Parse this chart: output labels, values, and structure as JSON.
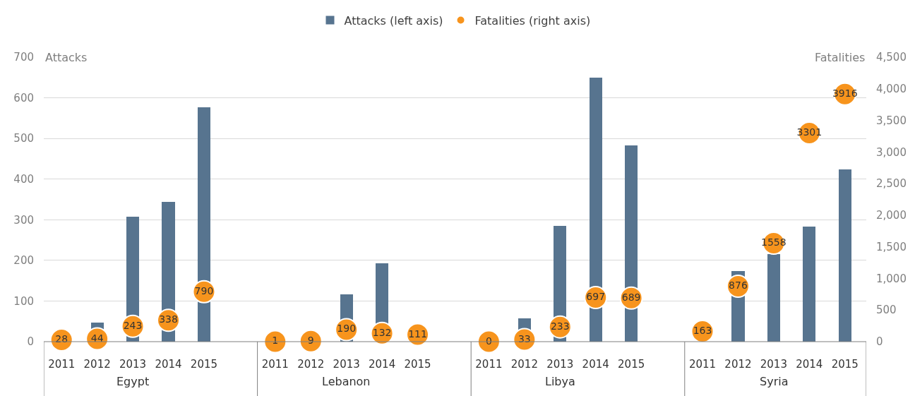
{
  "chart_data": {
    "type": "bar",
    "categories": [
      "2011",
      "2012",
      "2013",
      "2014",
      "2015",
      null,
      "2011",
      "2012",
      "2013",
      "2014",
      "2015",
      null,
      "2011",
      "2012",
      "2013",
      "2014",
      "2015",
      null,
      "2011",
      "2012",
      "2013",
      "2014",
      "2015"
    ],
    "ylabel": "Attacks",
    "y2label": "Fatalities",
    "annotations": [
      "Egypt",
      "Lebanon",
      "Libya",
      "Syria"
    ],
    "series": [
      {
        "name": "Attacks (left axis)",
        "color": "#57748f",
        "values": [
          null,
          47,
          307,
          344,
          577,
          null,
          null,
          null,
          116,
          192,
          null,
          null,
          null,
          58,
          285,
          649,
          483,
          null,
          null,
          173,
          215,
          283,
          423
        ]
      },
      {
        "name": "Fatalities (right axis)",
        "type": "scatter",
        "axis": "y2",
        "color": "#f7941d",
        "values": [
          28,
          44,
          243,
          338,
          790,
          null,
          1,
          9,
          190,
          132,
          111,
          null,
          0,
          33,
          233,
          697,
          689,
          null,
          163,
          876,
          1558,
          3301,
          3916
        ],
        "value_labels": [
          "28",
          "44",
          "243",
          "338",
          "790",
          null,
          "1",
          "9",
          "190",
          "132",
          "111",
          null,
          "0",
          "33",
          "233",
          "697",
          "689",
          null,
          "163",
          "876",
          "1558",
          "3301",
          "3916"
        ]
      }
    ],
    "ylim": [
      0,
      700
    ],
    "yticks": [
      0,
      100,
      200,
      300,
      400,
      500,
      600,
      700
    ],
    "y2lim": [
      0,
      4500
    ],
    "y2ticks": [
      {
        "value": 0,
        "label": "0"
      },
      {
        "value": 500,
        "label": "500"
      },
      {
        "value": 1000,
        "label": "1,000"
      },
      {
        "value": 1500,
        "label": "1,500"
      },
      {
        "value": 2000,
        "label": "2,000"
      },
      {
        "value": 2500,
        "label": "2,500"
      },
      {
        "value": 3000,
        "label": "3,000"
      },
      {
        "value": 3500,
        "label": "3,500"
      },
      {
        "value": 4000,
        "label": "4,000"
      },
      {
        "value": 4500,
        "label": "4,500"
      }
    ],
    "grid": "y",
    "legend": "top",
    "marker": "circle"
  }
}
